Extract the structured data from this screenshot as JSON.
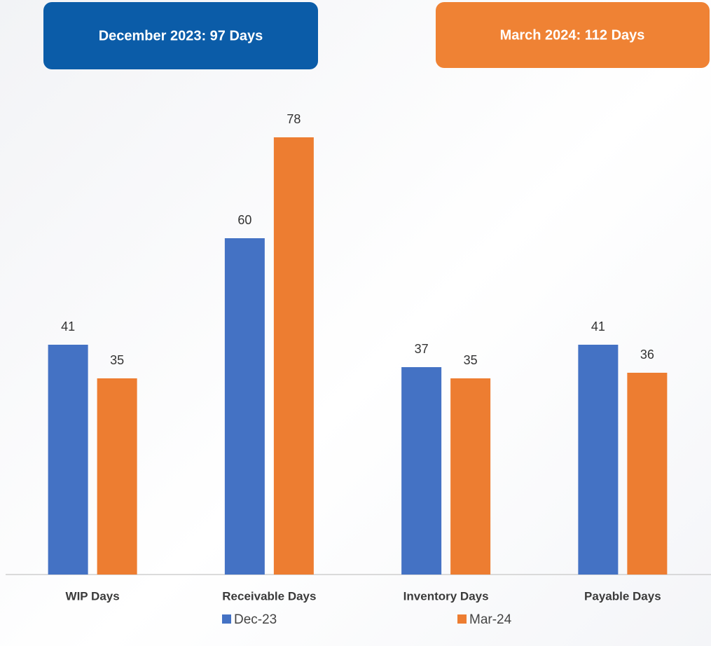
{
  "chart_data": {
    "type": "bar",
    "annotations": [
      "December 2023: 97 Days",
      "March 2024: 112 Days"
    ],
    "categories": [
      "WIP Days",
      "Receivable Days",
      "Inventory Days",
      "Payable Days"
    ],
    "series": [
      {
        "name": "Dec-23",
        "color": "#4472c4",
        "values": [
          41,
          60,
          37,
          41
        ]
      },
      {
        "name": "Mar-24",
        "color": "#ed7d31",
        "values": [
          35,
          78,
          35,
          36
        ]
      }
    ],
    "ylim": [
      0,
      90
    ]
  }
}
